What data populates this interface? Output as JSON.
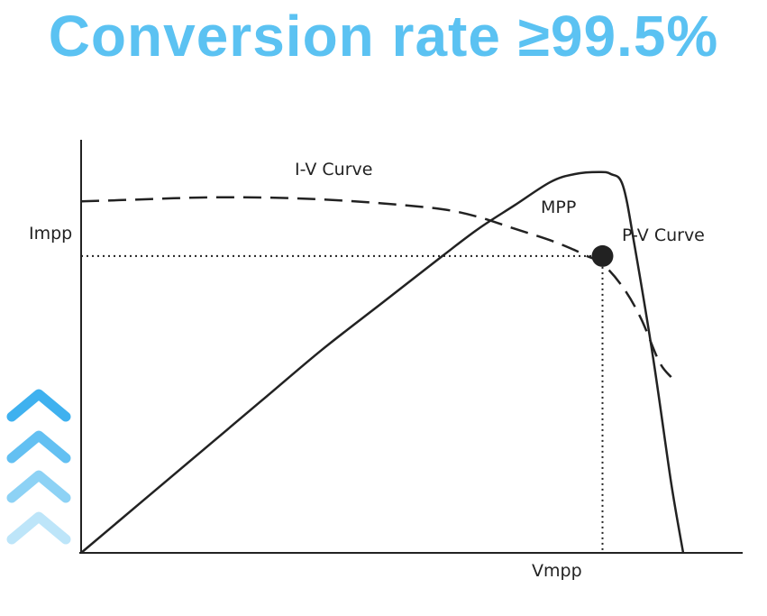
{
  "headline": "Conversion rate ≥99.5%",
  "colors": {
    "headline": "#5bc2f2",
    "curve": "#222222",
    "chevron_1": "#3fb1ef",
    "chevron_2": "#63c0f2",
    "chevron_3": "#8dd2f5",
    "chevron_4": "#bde5f9"
  },
  "icons": [
    "chevron-up-icon",
    "chevron-up-icon",
    "chevron-up-icon",
    "chevron-up-icon"
  ],
  "chart_data": {
    "type": "line",
    "title": "",
    "xlabel": "",
    "ylabel": "",
    "x_ticks": [
      "Vmpp"
    ],
    "y_ticks": [
      "Impp"
    ],
    "xlim": [
      0,
      1
    ],
    "ylim": [
      0,
      1
    ],
    "grid": false,
    "series": [
      {
        "name": "I-V Curve",
        "style": "dashed",
        "x": [
          0.0,
          0.1,
          0.2,
          0.3,
          0.4,
          0.5,
          0.6,
          0.66,
          0.72,
          0.78,
          0.82,
          0.84,
          0.866,
          0.9,
          0.93,
          0.96,
          0.98
        ],
        "y": [
          0.9,
          0.905,
          0.91,
          0.91,
          0.905,
          0.895,
          0.88,
          0.86,
          0.83,
          0.8,
          0.775,
          0.76,
          0.74,
          0.68,
          0.6,
          0.49,
          0.45
        ]
      },
      {
        "name": "P-V Curve",
        "style": "solid",
        "x": [
          0.0,
          0.1,
          0.2,
          0.3,
          0.4,
          0.5,
          0.6,
          0.66,
          0.72,
          0.78,
          0.82,
          0.86,
          0.88,
          0.9,
          0.92,
          0.95,
          0.98,
          1.0
        ],
        "y": [
          0.0,
          0.13,
          0.26,
          0.39,
          0.52,
          0.64,
          0.76,
          0.83,
          0.89,
          0.95,
          0.97,
          0.975,
          0.97,
          0.94,
          0.78,
          0.5,
          0.18,
          0.0
        ]
      }
    ],
    "annotations": [
      {
        "text": "MPP",
        "x": 0.866,
        "y": 0.76
      }
    ],
    "point_labels": {
      "iv": "I-V Curve",
      "pv": "P-V Curve",
      "mpp": "MPP",
      "vmpp": "Vmpp",
      "impp": "Impp"
    }
  }
}
